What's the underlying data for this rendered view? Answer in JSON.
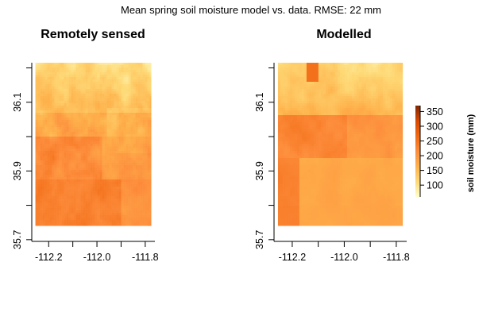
{
  "chart_data": {
    "type": "heatmap",
    "title": "Mean spring soil moisture model vs. data. RMSE: 22 mm",
    "panels": [
      {
        "title": "Remotely sensed",
        "field": "remote"
      },
      {
        "title": "Modelled",
        "field": "model"
      }
    ],
    "xlim": [
      -112.27,
      -111.76
    ],
    "ylim": [
      35.695,
      36.215
    ],
    "extent": {
      "lon": [
        -112.255,
        -111.775
      ],
      "lat": [
        35.74,
        36.215
      ]
    },
    "xticks": [
      -112.2,
      -112.0,
      -111.8
    ],
    "xtick_labels": [
      "-112.2",
      "-112.0",
      "-111.8"
    ],
    "xticks_minor": [
      -112.1,
      -111.9
    ],
    "yticks": [
      35.7,
      35.9,
      36.1
    ],
    "ytick_labels": [
      "35.7",
      "35.9",
      "36.1"
    ],
    "yticks_minor": [
      35.8,
      36.0,
      36.2
    ],
    "colorbar": {
      "label": "soil moisture (mm)",
      "range": [
        60,
        370
      ],
      "ticks": [
        100,
        150,
        200,
        250,
        300,
        350
      ],
      "tick_labels": [
        "100",
        "150",
        "200",
        "250",
        "300",
        "350"
      ],
      "colors": [
        "#ffffcc",
        "#fed976",
        "#feb24c",
        "#fd8d3c",
        "#f16913",
        "#d94801",
        "#7f2704"
      ]
    }
  }
}
